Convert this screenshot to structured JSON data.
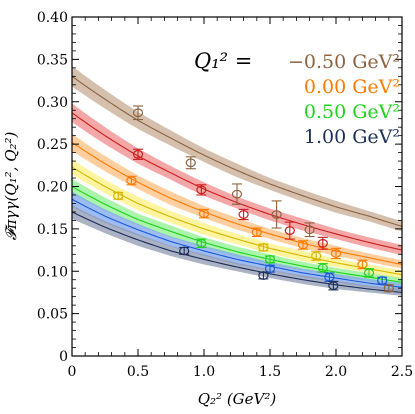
{
  "chart_data": {
    "type": "line",
    "xlabel": "Q₂² (GeV²)",
    "ylabel": "𝓕πγγ(Q₁², Q₂²)",
    "xlim": [
      0,
      2.5
    ],
    "ylim": [
      0,
      0.4
    ],
    "xticks": [
      "0",
      "0.5",
      "1.0",
      "1.5",
      "2.0",
      "2.5"
    ],
    "yticks": [
      "0",
      "0.05",
      "0.10",
      "0.15",
      "0.20",
      "0.25",
      "0.30",
      "0.35",
      "0.40"
    ],
    "legend_title": "Q₁² =",
    "legend_placement": "top-right",
    "series": [
      {
        "name": "−0.50 GeV²",
        "color": "#8b6340",
        "band_color": "#c7ab93",
        "curve": {
          "x": [
            0,
            0.25,
            0.5,
            0.75,
            1.0,
            1.25,
            1.5,
            1.75,
            2.0,
            2.25,
            2.5
          ],
          "y": [
            0.33,
            0.303,
            0.278,
            0.257,
            0.237,
            0.219,
            0.203,
            0.189,
            0.176,
            0.165,
            0.153
          ],
          "err": [
            0.012,
            0.011,
            0.01,
            0.009,
            0.008,
            0.008,
            0.007,
            0.007,
            0.007,
            0.006,
            0.006
          ]
        },
        "points": [
          {
            "x": 0.5,
            "y": 0.287,
            "err": 0.008
          },
          {
            "x": 0.9,
            "y": 0.228,
            "err": 0.007
          },
          {
            "x": 1.25,
            "y": 0.191,
            "err": 0.012
          },
          {
            "x": 1.55,
            "y": 0.167,
            "err": 0.016
          },
          {
            "x": 1.8,
            "y": 0.149,
            "err": 0.008
          },
          {
            "x": 2.4,
            "y": 0.08,
            "err": 0.004
          }
        ]
      },
      {
        "name": "",
        "color": "#c81e1e",
        "band_color": "#f08a8a",
        "curve": {
          "x": [
            0,
            0.25,
            0.5,
            0.75,
            1.0,
            1.25,
            1.5,
            1.75,
            2.0,
            2.25,
            2.5
          ],
          "y": [
            0.287,
            0.26,
            0.236,
            0.216,
            0.197,
            0.181,
            0.167,
            0.155,
            0.144,
            0.134,
            0.125
          ],
          "err": [
            0.011,
            0.01,
            0.009,
            0.008,
            0.008,
            0.007,
            0.007,
            0.007,
            0.006,
            0.006,
            0.006
          ]
        },
        "points": [
          {
            "x": 0.5,
            "y": 0.238,
            "err": 0.006
          },
          {
            "x": 0.98,
            "y": 0.196,
            "err": 0.006
          },
          {
            "x": 1.3,
            "y": 0.167,
            "err": 0.006
          },
          {
            "x": 1.65,
            "y": 0.148,
            "err": 0.01
          },
          {
            "x": 1.9,
            "y": 0.133,
            "err": 0.007
          }
        ]
      },
      {
        "name": "0.00 GeV²",
        "color": "#ff7a00",
        "band_color": "#ffbf80",
        "curve": {
          "x": [
            0,
            0.25,
            0.5,
            0.75,
            1.0,
            1.25,
            1.5,
            1.75,
            2.0,
            2.25,
            2.5
          ],
          "y": [
            0.252,
            0.227,
            0.205,
            0.186,
            0.17,
            0.156,
            0.144,
            0.133,
            0.124,
            0.116,
            0.108
          ],
          "err": [
            0.01,
            0.009,
            0.008,
            0.008,
            0.007,
            0.007,
            0.006,
            0.006,
            0.006,
            0.005,
            0.005
          ]
        },
        "points": [
          {
            "x": 0.45,
            "y": 0.207,
            "err": 0.005
          },
          {
            "x": 1.0,
            "y": 0.168,
            "err": 0.005
          },
          {
            "x": 1.4,
            "y": 0.146,
            "err": 0.005
          },
          {
            "x": 1.75,
            "y": 0.131,
            "err": 0.005
          },
          {
            "x": 2.0,
            "y": 0.121,
            "err": 0.006
          },
          {
            "x": 2.2,
            "y": 0.108,
            "err": 0.005
          }
        ]
      },
      {
        "name": "",
        "color": "#d4b600",
        "band_color": "#fff080",
        "curve": {
          "x": [
            0,
            0.25,
            0.5,
            0.75,
            1.0,
            1.25,
            1.5,
            1.75,
            2.0,
            2.25,
            2.5
          ],
          "y": [
            0.223,
            0.2,
            0.18,
            0.164,
            0.15,
            0.138,
            0.127,
            0.118,
            0.11,
            0.103,
            0.096
          ],
          "err": [
            0.009,
            0.008,
            0.008,
            0.007,
            0.007,
            0.006,
            0.006,
            0.006,
            0.005,
            0.005,
            0.005
          ]
        },
        "points": [
          {
            "x": 0.35,
            "y": 0.189,
            "err": 0.004
          },
          {
            "x": 1.45,
            "y": 0.128,
            "err": 0.004
          },
          {
            "x": 1.85,
            "y": 0.118,
            "err": 0.005
          }
        ]
      },
      {
        "name": "0.50 GeV²",
        "color": "#1ed21e",
        "band_color": "#8ff08f",
        "curve": {
          "x": [
            0,
            0.25,
            0.5,
            0.75,
            1.0,
            1.25,
            1.5,
            1.75,
            2.0,
            2.25,
            2.5
          ],
          "y": [
            0.2,
            0.179,
            0.161,
            0.147,
            0.134,
            0.123,
            0.114,
            0.106,
            0.099,
            0.093,
            0.087
          ],
          "err": [
            0.009,
            0.008,
            0.007,
            0.007,
            0.006,
            0.006,
            0.006,
            0.005,
            0.005,
            0.005,
            0.005
          ]
        },
        "points": [
          {
            "x": 0.98,
            "y": 0.133,
            "err": 0.005
          },
          {
            "x": 1.5,
            "y": 0.114,
            "err": 0.004
          },
          {
            "x": 1.9,
            "y": 0.104,
            "err": 0.005
          },
          {
            "x": 2.25,
            "y": 0.098,
            "err": 0.005
          }
        ]
      },
      {
        "name": "",
        "color": "#1a5ad8",
        "band_color": "#7fa6ee",
        "curve": {
          "x": [
            0,
            0.25,
            0.5,
            0.75,
            1.0,
            1.25,
            1.5,
            1.75,
            2.0,
            2.25,
            2.5
          ],
          "y": [
            0.185,
            0.165,
            0.149,
            0.135,
            0.124,
            0.114,
            0.106,
            0.098,
            0.092,
            0.086,
            0.081
          ],
          "err": [
            0.009,
            0.008,
            0.007,
            0.006,
            0.006,
            0.006,
            0.005,
            0.005,
            0.005,
            0.005,
            0.005
          ]
        },
        "points": [
          {
            "x": 1.5,
            "y": 0.103,
            "err": 0.004
          },
          {
            "x": 1.95,
            "y": 0.093,
            "err": 0.005
          },
          {
            "x": 2.35,
            "y": 0.089,
            "err": 0.004
          }
        ]
      },
      {
        "name": "1.00 GeV²",
        "color": "#1c2e5a",
        "band_color": "#8e98b0",
        "curve": {
          "x": [
            0,
            0.25,
            0.5,
            0.75,
            1.0,
            1.25,
            1.5,
            1.75,
            2.0,
            2.25,
            2.5
          ],
          "y": [
            0.17,
            0.152,
            0.137,
            0.124,
            0.114,
            0.105,
            0.097,
            0.09,
            0.084,
            0.079,
            0.075
          ],
          "err": [
            0.008,
            0.007,
            0.007,
            0.006,
            0.006,
            0.005,
            0.005,
            0.005,
            0.005,
            0.004,
            0.004
          ]
        },
        "points": [
          {
            "x": 0.85,
            "y": 0.124,
            "err": 0.004
          },
          {
            "x": 1.45,
            "y": 0.095,
            "err": 0.004
          },
          {
            "x": 1.98,
            "y": 0.083,
            "err": 0.005
          }
        ]
      }
    ]
  }
}
